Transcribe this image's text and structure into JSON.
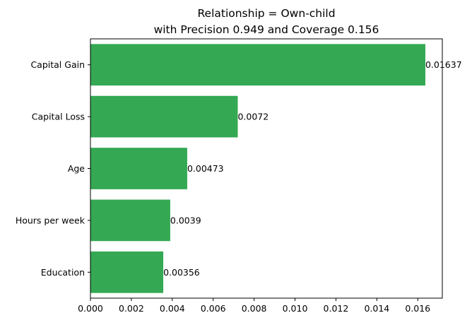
{
  "chart_data": {
    "type": "bar",
    "orientation": "horizontal",
    "title": "Relationship = Own-child",
    "subtitle": "with Precision 0.949 and Coverage 0.156",
    "xlabel": "",
    "ylabel": "",
    "categories": [
      "Capital Gain",
      "Capital Loss",
      "Age",
      "Hours per week",
      "Education"
    ],
    "values": [
      0.01637,
      0.0072,
      0.00473,
      0.0039,
      0.00356
    ],
    "data_labels": [
      "0.01637",
      "0.0072",
      "0.00473",
      "0.0039",
      "0.00356"
    ],
    "xlim": [
      0,
      0.0172
    ],
    "xticks": [
      0,
      0.002,
      0.004,
      0.006,
      0.008,
      0.01,
      0.012,
      0.014,
      0.016
    ],
    "xtick_labels": [
      "0.000",
      "0.002",
      "0.004",
      "0.006",
      "0.008",
      "0.010",
      "0.012",
      "0.014",
      "0.016"
    ],
    "grid": false,
    "bar_color": "#34a853",
    "axis_color": "#000000"
  }
}
